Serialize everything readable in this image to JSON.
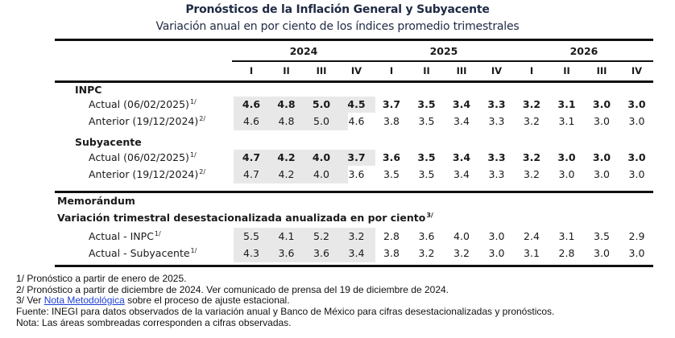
{
  "title": "Pronósticos de la Inflación General y Subyacente",
  "subtitle": "Variación anual en por ciento de los índices promedio trimestrales",
  "years": [
    "2024",
    "2025",
    "2026"
  ],
  "quarters": [
    "I",
    "II",
    "III",
    "IV",
    "I",
    "II",
    "III",
    "IV",
    "I",
    "II",
    "III",
    "IV"
  ],
  "sections": {
    "inpc": {
      "label": "INPC",
      "rows": [
        {
          "label": "Actual (06/02/2025)",
          "note": "1/",
          "bold": true,
          "values": [
            "4.6",
            "4.8",
            "5.0",
            "4.5",
            "3.7",
            "3.5",
            "3.4",
            "3.3",
            "3.2",
            "3.1",
            "3.0",
            "3.0"
          ]
        },
        {
          "label": "Anterior (19/12/2024)",
          "note": "2/",
          "bold": false,
          "values": [
            "4.6",
            "4.8",
            "5.0",
            "4.6",
            "3.8",
            "3.5",
            "3.4",
            "3.3",
            "3.2",
            "3.1",
            "3.0",
            "3.0"
          ]
        }
      ]
    },
    "subyacente": {
      "label": "Subyacente",
      "rows": [
        {
          "label": "Actual (06/02/2025)",
          "note": "1/",
          "bold": true,
          "values": [
            "4.7",
            "4.2",
            "4.0",
            "3.7",
            "3.6",
            "3.5",
            "3.4",
            "3.3",
            "3.2",
            "3.0",
            "3.0",
            "3.0"
          ]
        },
        {
          "label": "Anterior (19/12/2024)",
          "note": "2/",
          "bold": false,
          "values": [
            "4.7",
            "4.2",
            "4.0",
            "3.6",
            "3.5",
            "3.5",
            "3.4",
            "3.3",
            "3.2",
            "3.0",
            "3.0",
            "3.0"
          ]
        }
      ]
    },
    "memo": {
      "label": "Memorándum",
      "sublabel": "Variación trimestral desestacionalizada anualizada en por ciento",
      "sublabel_note": "3/",
      "rows": [
        {
          "label": "Actual - INPC",
          "note": "1/",
          "bold": false,
          "values": [
            "5.5",
            "4.1",
            "5.2",
            "3.2",
            "2.8",
            "3.6",
            "4.0",
            "3.0",
            "2.4",
            "3.1",
            "3.5",
            "2.9"
          ]
        },
        {
          "label": "Actual - Subyacente",
          "note": "1/",
          "bold": false,
          "values": [
            "4.3",
            "3.6",
            "3.6",
            "3.4",
            "3.8",
            "3.2",
            "3.2",
            "3.0",
            "3.1",
            "2.8",
            "3.0",
            "3.0"
          ]
        }
      ]
    }
  },
  "notes": {
    "n1": "1/ Pronóstico a partir de enero de 2025.",
    "n2": "2/ Pronóstico a partir de diciembre de 2024. Ver comunicado de prensa del 19 de diciembre de 2024.",
    "n3_prefix": "3/ Ver ",
    "n3_link": "Nota Metodológica",
    "n3_suffix": " sobre el proceso de ajuste estacional.",
    "fuente": "Fuente: INEGI para datos observados de la variación anual y Banco de México para cifras desestacionalizadas y pronósticos.",
    "nota": "Nota: Las áreas sombreadas corresponden a cifras observadas."
  },
  "colors": {
    "title": "#1f2a44",
    "shade": "#e8e8e8",
    "link": "#1f3fd6"
  }
}
